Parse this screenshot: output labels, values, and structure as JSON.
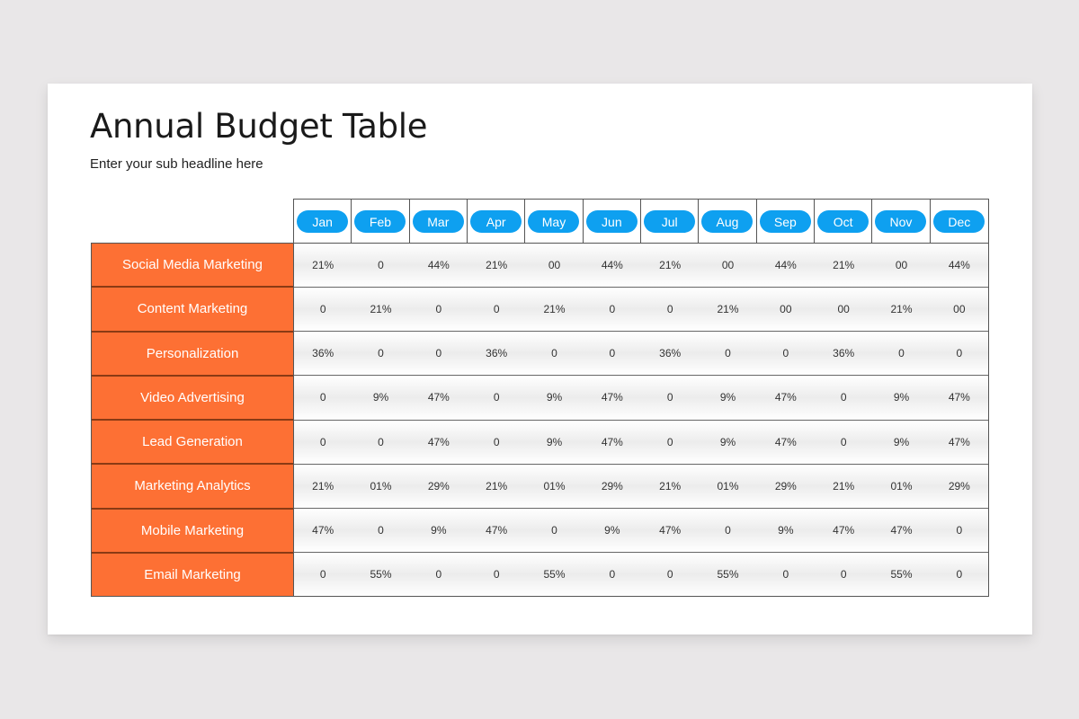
{
  "slide": {
    "title": "Annual Budget Table",
    "subtitle": "Enter your sub headline here"
  },
  "colors": {
    "accent_orange": "#fd7034",
    "month_pill_blue": "#0ea0f0",
    "background": "#e9e7e8"
  },
  "table": {
    "months": [
      "Jan",
      "Feb",
      "Mar",
      "Apr",
      "May",
      "Jun",
      "Jul",
      "Aug",
      "Sep",
      "Oct",
      "Nov",
      "Dec"
    ],
    "rows": [
      {
        "label": "Social Media Marketing",
        "values": [
          "21%",
          "0",
          "44%",
          "21%",
          "00",
          "44%",
          "21%",
          "00",
          "44%",
          "21%",
          "00",
          "44%"
        ]
      },
      {
        "label": "Content Marketing",
        "values": [
          "0",
          "21%",
          "0",
          "0",
          "21%",
          "0",
          "0",
          "21%",
          "00",
          "00",
          "21%",
          "00"
        ]
      },
      {
        "label": "Personalization",
        "values": [
          "36%",
          "0",
          "0",
          "36%",
          "0",
          "0",
          "36%",
          "0",
          "0",
          "36%",
          "0",
          "0"
        ]
      },
      {
        "label": "Video Advertising",
        "values": [
          "0",
          "9%",
          "47%",
          "0",
          "9%",
          "47%",
          "0",
          "9%",
          "47%",
          "0",
          "9%",
          "47%"
        ]
      },
      {
        "label": "Lead Generation",
        "values": [
          "0",
          "0",
          "47%",
          "0",
          "9%",
          "47%",
          "0",
          "9%",
          "47%",
          "0",
          "9%",
          "47%"
        ]
      },
      {
        "label": "Marketing Analytics",
        "values": [
          "21%",
          "01%",
          "29%",
          "21%",
          "01%",
          "29%",
          "21%",
          "01%",
          "29%",
          "21%",
          "01%",
          "29%"
        ]
      },
      {
        "label": "Mobile Marketing",
        "values": [
          "47%",
          "0",
          "9%",
          "47%",
          "0",
          "9%",
          "47%",
          "0",
          "9%",
          "47%",
          "47%",
          "0"
        ]
      },
      {
        "label": "Email Marketing",
        "values": [
          "0",
          "55%",
          "0",
          "0",
          "55%",
          "0",
          "0",
          "55%",
          "0",
          "0",
          "55%",
          "0"
        ]
      }
    ]
  }
}
